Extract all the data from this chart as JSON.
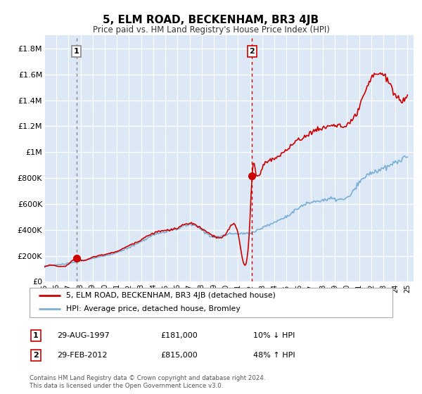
{
  "title": "5, ELM ROAD, BECKENHAM, BR3 4JB",
  "subtitle": "Price paid vs. HM Land Registry's House Price Index (HPI)",
  "ylim": [
    0,
    1900000
  ],
  "yticks": [
    0,
    200000,
    400000,
    600000,
    800000,
    1000000,
    1200000,
    1400000,
    1600000,
    1800000
  ],
  "ytick_labels": [
    "£0",
    "£200K",
    "£400K",
    "£600K",
    "£800K",
    "£1M",
    "£1.2M",
    "£1.4M",
    "£1.6M",
    "£1.8M"
  ],
  "xlim_start": 1995.0,
  "xlim_end": 2025.5,
  "background_color": "#dce8f5",
  "red_line_color": "#cc0000",
  "blue_line_color": "#7bafd4",
  "marker_color": "#cc0000",
  "vline1_color": "#888888",
  "vline2_color": "#cc0000",
  "grid_color": "#ffffff",
  "shade_color": "#dce8f5",
  "transaction1_x": 1997.66,
  "transaction1_y": 181000,
  "transaction1_label": "1",
  "transaction2_x": 2012.16,
  "transaction2_y": 815000,
  "transaction2_label": "2",
  "legend_line1": "5, ELM ROAD, BECKENHAM, BR3 4JB (detached house)",
  "legend_line2": "HPI: Average price, detached house, Bromley",
  "table_row1": [
    "1",
    "29-AUG-1997",
    "£181,000",
    "10% ↓ HPI"
  ],
  "table_row2": [
    "2",
    "29-FEB-2012",
    "£815,000",
    "48% ↑ HPI"
  ],
  "footer": "Contains HM Land Registry data © Crown copyright and database right 2024.\nThis data is licensed under the Open Government Licence v3.0."
}
